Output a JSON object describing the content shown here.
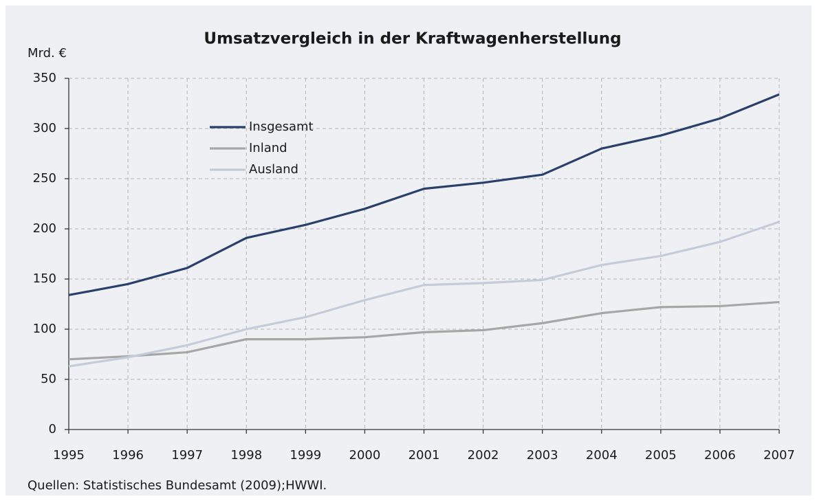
{
  "chart_data": {
    "type": "line",
    "title": "Umsatzvergleich in der Kraftwagenherstellung",
    "ylabel": "Mrd. €",
    "source": "Quellen: Statistisches Bundesamt (2009);HWWI.",
    "x": [
      1995,
      1996,
      1997,
      1998,
      1999,
      2000,
      2001,
      2002,
      2003,
      2004,
      2005,
      2006,
      2007
    ],
    "xlim": [
      1995,
      2007
    ],
    "xticks": [
      1995,
      1996,
      1997,
      1998,
      1999,
      2000,
      2001,
      2002,
      2003,
      2004,
      2005,
      2006,
      2007
    ],
    "ylim": [
      0,
      350
    ],
    "yticks": [
      0,
      50,
      100,
      150,
      200,
      250,
      300,
      350
    ],
    "grid": true,
    "series": [
      {
        "name": "Insgesamt",
        "color": "#2b3f6b",
        "values": [
          134,
          145,
          161,
          191,
          204,
          220,
          240,
          246,
          254,
          280,
          293,
          310,
          334
        ]
      },
      {
        "name": "Inland",
        "color": "#a6a6a6",
        "values": [
          70,
          73,
          77,
          90,
          90,
          92,
          97,
          99,
          106,
          116,
          122,
          123,
          127
        ]
      },
      {
        "name": "Ausland",
        "color": "#c5cbd9",
        "values": [
          63,
          72,
          84,
          100,
          112,
          129,
          144,
          146,
          149,
          164,
          173,
          187,
          207
        ]
      }
    ]
  }
}
